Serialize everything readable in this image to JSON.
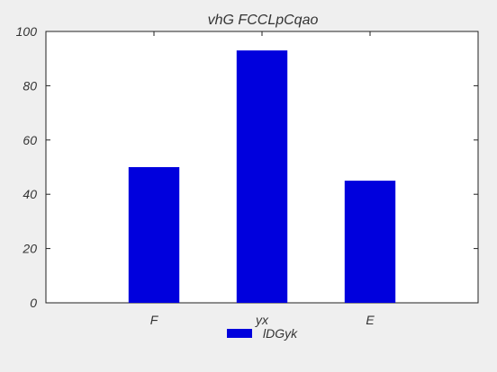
{
  "chart_data": {
    "type": "bar",
    "title": "vhG FCCLpCqao",
    "categories": [
      "F",
      "yx",
      "E"
    ],
    "series": [
      {
        "name": "lDGyk",
        "values": [
          50,
          93,
          45
        ],
        "color": "#0000dd"
      }
    ],
    "ylim": [
      0,
      100
    ],
    "yticks": [
      0,
      20,
      40,
      60,
      80,
      100
    ],
    "xlabel": "",
    "ylabel": "",
    "grid": false,
    "legend_position": "bottom-center",
    "plot_background": "#ffffff",
    "page_background": "#efefef"
  }
}
